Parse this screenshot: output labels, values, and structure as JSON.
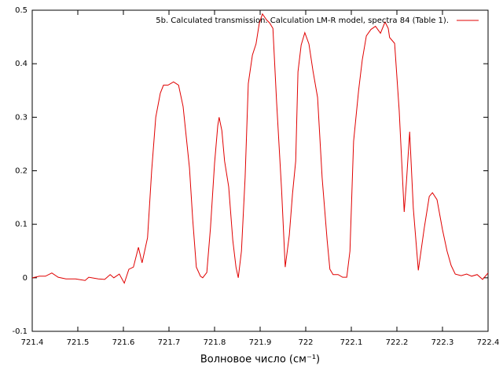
{
  "chart_data": {
    "type": "line",
    "xlabel": "Волновое число (см⁻¹)",
    "x": [
      721.4,
      721.416,
      721.429,
      721.443,
      721.457,
      721.474,
      721.495,
      721.516,
      721.524,
      721.545,
      721.559,
      721.571,
      721.579,
      721.591,
      721.602,
      721.612,
      721.622,
      721.633,
      721.641,
      721.653,
      721.662,
      721.671,
      721.681,
      721.688,
      721.698,
      721.71,
      721.721,
      721.731,
      721.745,
      721.752,
      721.76,
      721.769,
      721.774,
      721.783,
      721.791,
      721.8,
      721.807,
      721.81,
      721.816,
      721.822,
      721.831,
      721.84,
      721.847,
      721.852,
      721.859,
      721.867,
      721.874,
      721.883,
      721.891,
      721.898,
      721.905,
      721.914,
      721.921,
      721.928,
      721.936,
      721.947,
      721.955,
      721.964,
      721.971,
      721.978,
      721.983,
      721.99,
      721.998,
      722.007,
      722.016,
      722.026,
      722.036,
      722.047,
      722.053,
      722.06,
      722.071,
      722.081,
      722.09,
      722.097,
      722.105,
      722.116,
      722.124,
      722.133,
      722.143,
      722.153,
      722.164,
      722.174,
      722.181,
      722.184,
      722.195,
      722.205,
      722.216,
      722.221,
      722.228,
      722.236,
      722.247,
      722.26,
      722.271,
      722.278,
      722.288,
      722.3,
      722.31,
      722.319,
      722.328,
      722.341,
      722.353,
      722.364,
      722.376,
      722.388,
      722.4
    ],
    "series": [
      {
        "name": "5b. Calculated transmission. Calculation LM-R model, spectra 84 (Table 1).",
        "color": "#e00000",
        "values": [
          0,
          0.003,
          0.003,
          0.009,
          0.001,
          -0.002,
          -0.002,
          -0.005,
          0.001,
          -0.002,
          -0.003,
          0.006,
          0,
          0.007,
          -0.01,
          0.016,
          0.02,
          0.057,
          0.028,
          0.075,
          0.2,
          0.3,
          0.345,
          0.36,
          0.36,
          0.366,
          0.36,
          0.32,
          0.205,
          0.11,
          0.02,
          0.003,
          0,
          0.01,
          0.093,
          0.214,
          0.284,
          0.3,
          0.275,
          0.218,
          0.17,
          0.07,
          0.02,
          0,
          0.05,
          0.187,
          0.363,
          0.416,
          0.437,
          0.475,
          0.493,
          0.482,
          0.476,
          0.466,
          0.33,
          0.165,
          0.02,
          0.08,
          0.157,
          0.218,
          0.385,
          0.435,
          0.458,
          0.437,
          0.386,
          0.337,
          0.187,
          0.07,
          0.016,
          0.006,
          0.006,
          0.001,
          0.001,
          0.05,
          0.255,
          0.35,
          0.407,
          0.452,
          0.464,
          0.47,
          0.457,
          0.478,
          0.466,
          0.449,
          0.438,
          0.313,
          0.123,
          0.18,
          0.273,
          0.13,
          0.014,
          0.093,
          0.152,
          0.159,
          0.146,
          0.09,
          0.05,
          0.023,
          0.007,
          0.004,
          0.007,
          0.003,
          0.006,
          -0.003,
          0.009
        ]
      }
    ],
    "xlim": [
      721.4,
      722.4
    ],
    "xticks": [
      721.4,
      721.5,
      721.6,
      721.7,
      721.8,
      721.9,
      722,
      722.1,
      722.2,
      722.3,
      722.4
    ],
    "ylim": [
      -0.1,
      0.5
    ],
    "yticks": [
      -0.1,
      0,
      0.1,
      0.2,
      0.3,
      0.4,
      0.5
    ],
    "legend": "top-right"
  }
}
